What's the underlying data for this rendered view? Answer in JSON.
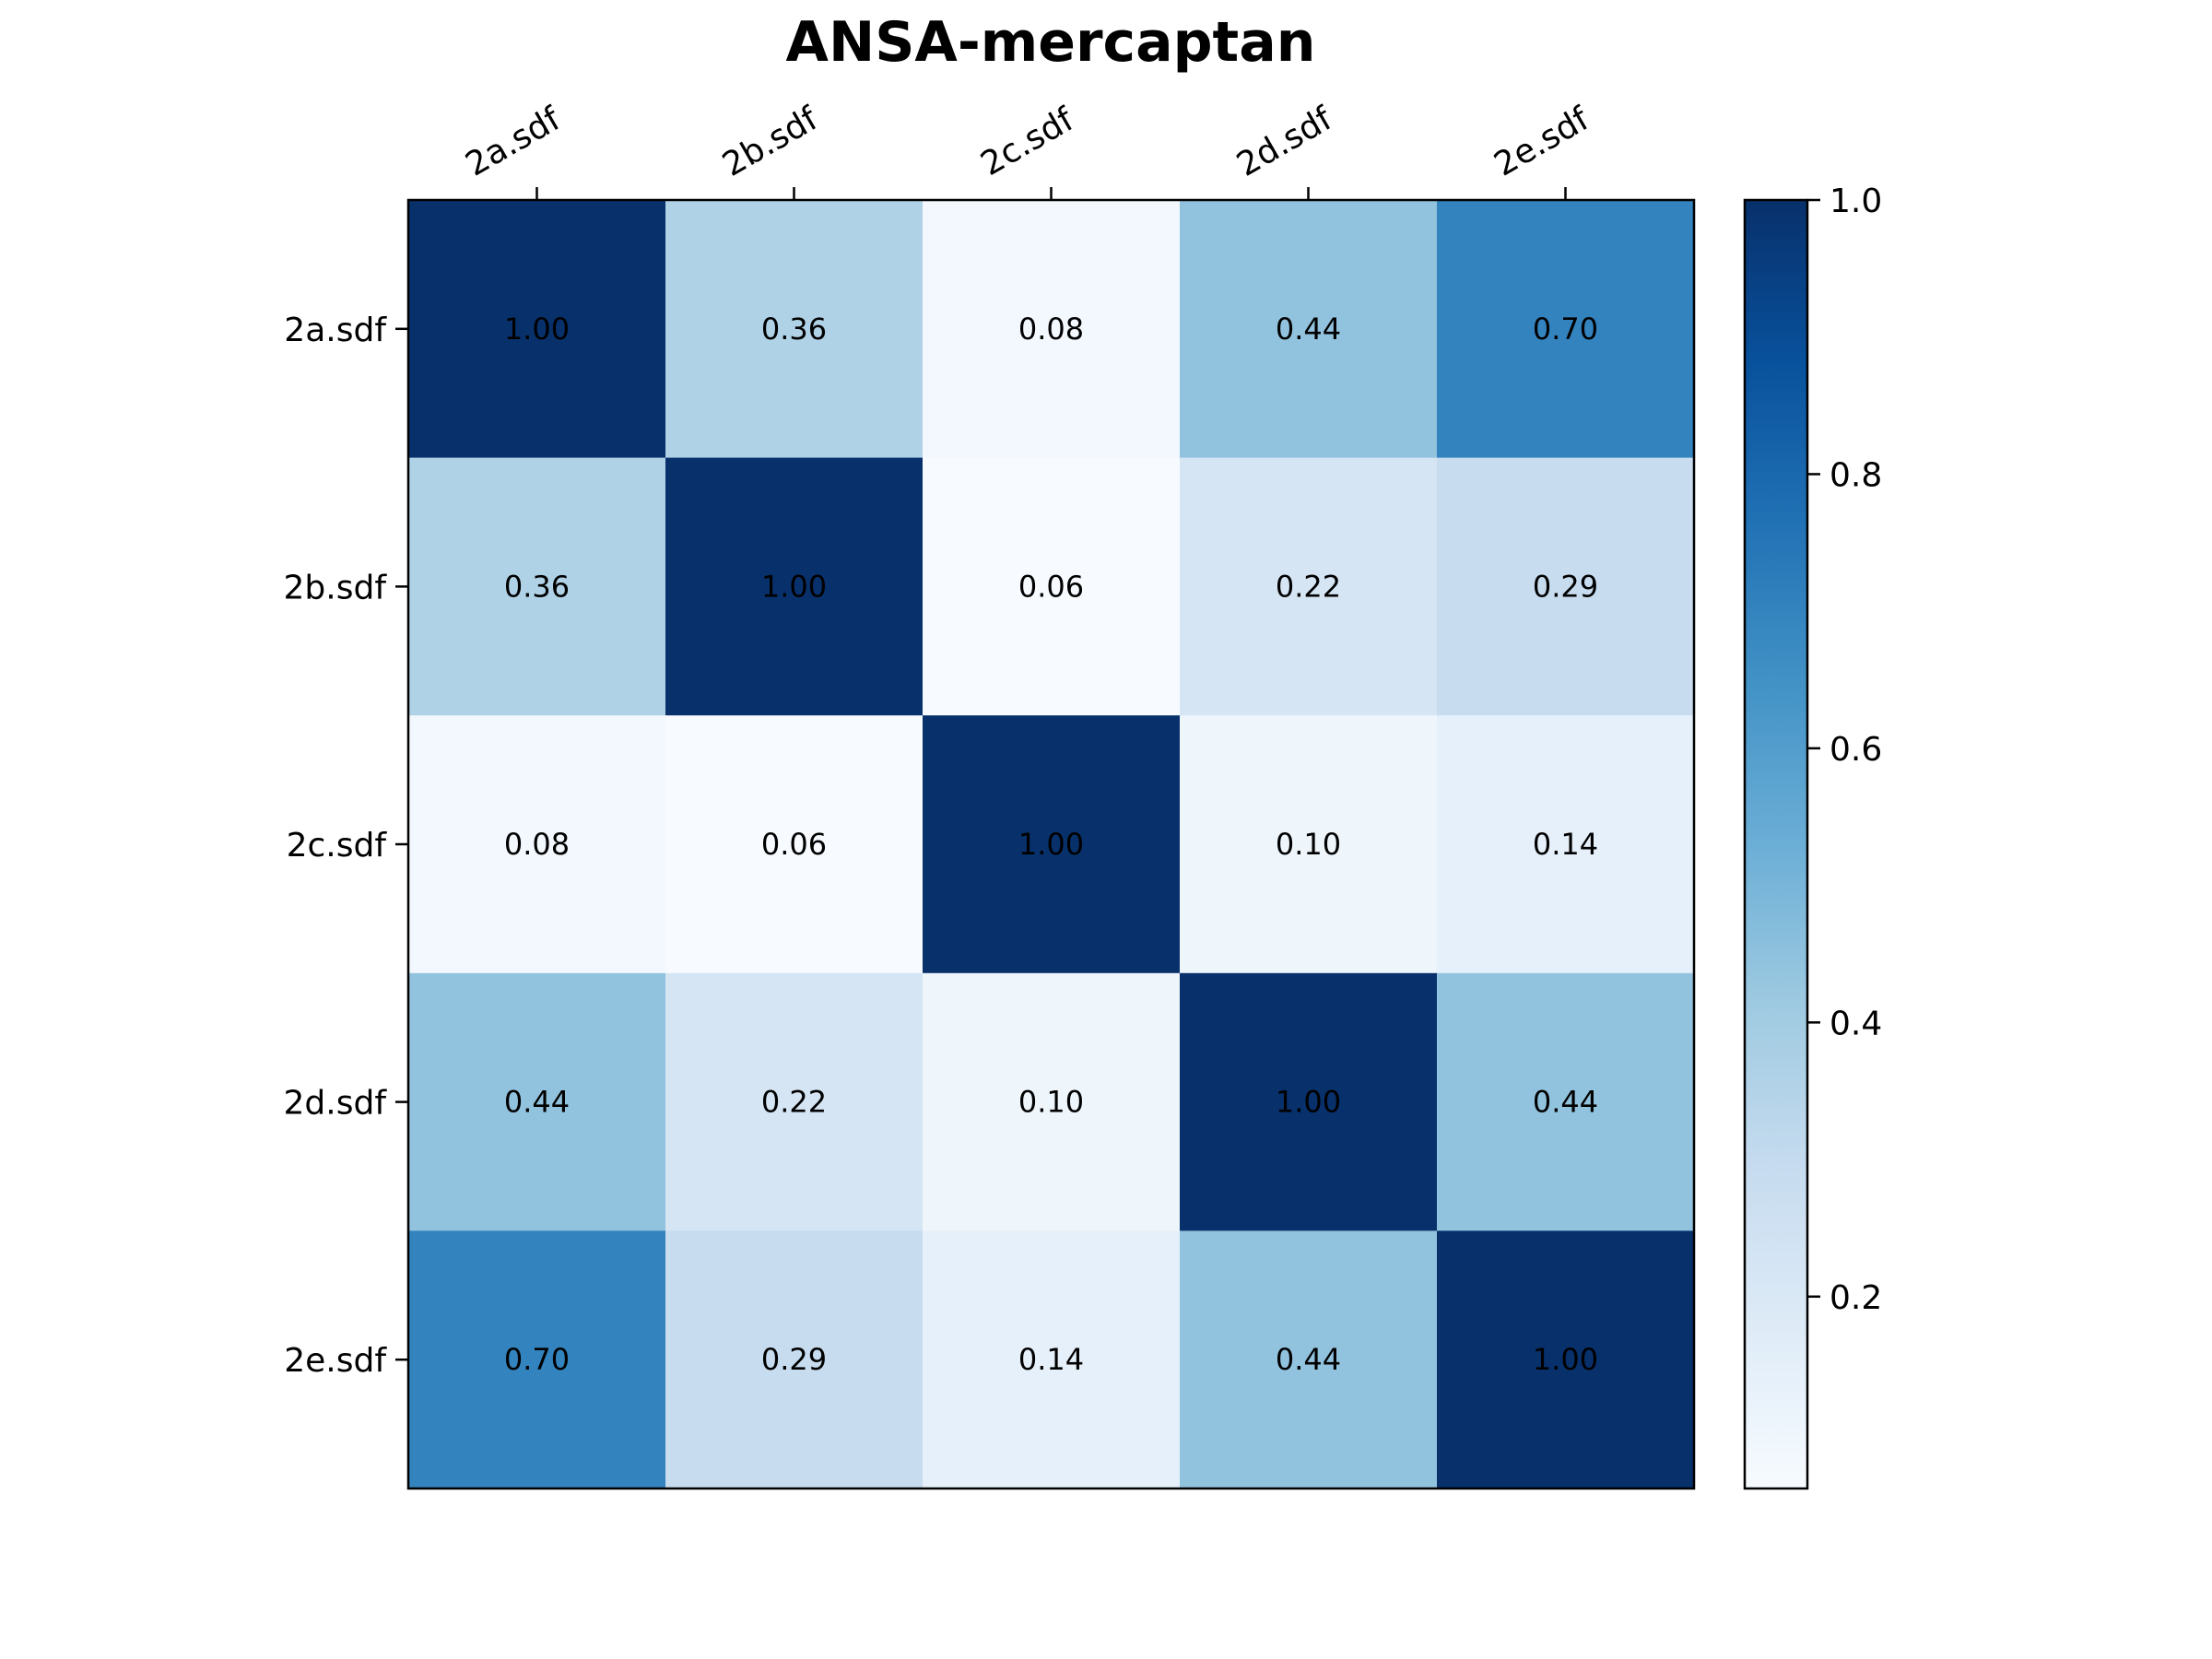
{
  "chart_data": {
    "type": "heatmap",
    "title": "ANSA-mercaptan",
    "x_categories": [
      "2a.sdf",
      "2b.sdf",
      "2c.sdf",
      "2d.sdf",
      "2e.sdf"
    ],
    "y_categories": [
      "2a.sdf",
      "2b.sdf",
      "2c.sdf",
      "2d.sdf",
      "2e.sdf"
    ],
    "values": [
      [
        1.0,
        0.36,
        0.08,
        0.44,
        0.7
      ],
      [
        0.36,
        1.0,
        0.06,
        0.22,
        0.29
      ],
      [
        0.08,
        0.06,
        1.0,
        0.1,
        0.14
      ],
      [
        0.44,
        0.22,
        0.1,
        1.0,
        0.44
      ],
      [
        0.7,
        0.29,
        0.14,
        0.44,
        1.0
      ]
    ],
    "value_labels": [
      [
        "1.00",
        "0.36",
        "0.08",
        "0.44",
        "0.70"
      ],
      [
        "0.36",
        "1.00",
        "0.06",
        "0.22",
        "0.29"
      ],
      [
        "0.08",
        "0.06",
        "1.00",
        "0.10",
        "0.14"
      ],
      [
        "0.44",
        "0.22",
        "0.10",
        "1.00",
        "0.44"
      ],
      [
        "0.70",
        "0.29",
        "0.14",
        "0.44",
        "1.00"
      ]
    ],
    "x_tick_position": "top",
    "x_tick_rotation_deg": 30,
    "colormap": "Blues",
    "colormap_stops": [
      "#f7fbff",
      "#deebf7",
      "#c6dbef",
      "#9ecae1",
      "#6baed6",
      "#4292c6",
      "#2171b5",
      "#08519c",
      "#08306b"
    ],
    "colorbar": {
      "position": "right",
      "range": [
        0.06,
        1.0
      ],
      "ticks": [
        0.2,
        0.4,
        0.6,
        0.8,
        1.0
      ],
      "tick_labels": [
        "0.2",
        "0.4",
        "0.6",
        "0.8",
        "1.0"
      ]
    },
    "grid": false
  }
}
